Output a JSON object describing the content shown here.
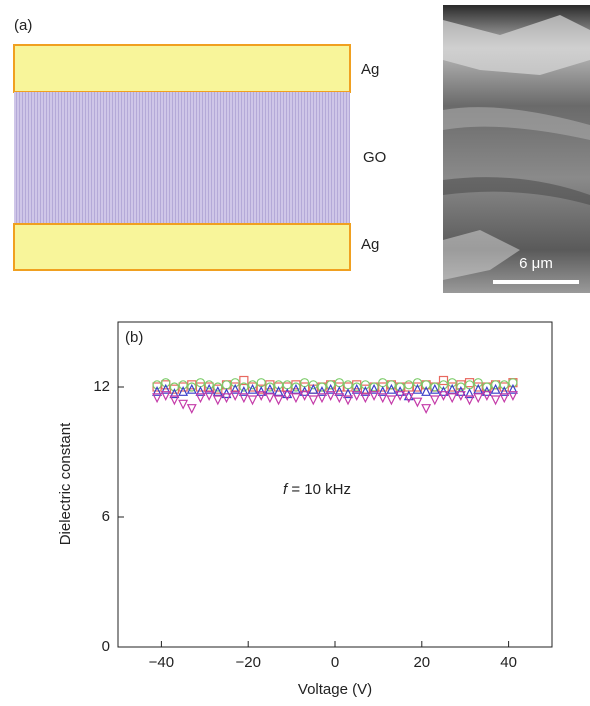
{
  "diagram": {
    "label": "(a)",
    "layers": [
      "Ag",
      "GO",
      "Ag"
    ],
    "scale_bar": "6 μm"
  },
  "chart_data": {
    "type": "scatter",
    "label": "(b)",
    "annotation": {
      "variable": "f",
      "text": "= 10 kHz"
    },
    "x_label": "Voltage (V)",
    "y_label": "Dielectric constant",
    "xlim": [
      -50,
      50
    ],
    "ylim": [
      0,
      15
    ],
    "xticks": [
      {
        "value": -40,
        "label": "−40"
      },
      {
        "value": -20,
        "label": "−20"
      },
      0,
      20,
      40
    ],
    "yticks": [
      0,
      6,
      12
    ],
    "x": [
      -41,
      -39,
      -37,
      -35,
      -33,
      -31,
      -29,
      -27,
      -25,
      -23,
      -21,
      -19,
      -17,
      -15,
      -13,
      -11,
      -9,
      -7,
      -5,
      -3,
      -1,
      1,
      3,
      5,
      7,
      9,
      11,
      13,
      15,
      17,
      19,
      21,
      23,
      25,
      27,
      29,
      31,
      33,
      35,
      37,
      39,
      41
    ],
    "series": [
      {
        "color": "#e8685f",
        "marker": "square",
        "values": [
          12.0,
          12.1,
          11.9,
          12.0,
          12.1,
          12.0,
          12.0,
          11.9,
          12.1,
          12.0,
          12.3,
          12.0,
          11.9,
          12.1,
          12.0,
          12.0,
          12.1,
          12.0,
          11.9,
          12.0,
          12.1,
          12.0,
          12.0,
          12.1,
          11.9,
          12.0,
          12.0,
          12.1,
          12.0,
          12.0,
          12.0,
          12.1,
          12.0,
          12.3,
          12.0,
          12.1,
          12.2,
          12.0,
          12.0,
          12.1,
          12.0,
          12.2
        ]
      },
      {
        "color": "#7dcc6a",
        "marker": "circle",
        "values": [
          12.1,
          12.2,
          12.0,
          12.1,
          12.0,
          12.2,
          12.1,
          12.0,
          12.1,
          12.2,
          12.0,
          12.1,
          12.2,
          12.0,
          12.1,
          12.1,
          12.0,
          12.2,
          12.1,
          12.0,
          12.1,
          12.2,
          12.1,
          12.0,
          12.1,
          12.0,
          12.2,
          12.1,
          12.0,
          12.1,
          12.2,
          12.1,
          12.0,
          12.1,
          12.2,
          12.0,
          12.1,
          12.2,
          12.0,
          12.1,
          12.1,
          12.2
        ]
      },
      {
        "color": "#3a3fc8",
        "marker": "triangle",
        "values": [
          11.8,
          11.9,
          11.7,
          11.8,
          11.9,
          11.8,
          11.9,
          11.8,
          11.7,
          11.9,
          11.8,
          11.9,
          11.8,
          11.9,
          11.8,
          11.7,
          11.9,
          11.8,
          11.9,
          11.8,
          11.9,
          11.8,
          11.7,
          11.9,
          11.8,
          11.9,
          11.8,
          11.9,
          11.8,
          11.6,
          11.9,
          11.8,
          11.9,
          11.8,
          11.9,
          11.8,
          11.7,
          11.9,
          11.8,
          11.9,
          11.8,
          11.9
        ]
      },
      {
        "color": "#c43aa8",
        "marker": "triangle-down",
        "values": [
          11.5,
          11.6,
          11.4,
          11.2,
          11.0,
          11.5,
          11.6,
          11.4,
          11.5,
          11.6,
          11.5,
          11.4,
          11.6,
          11.5,
          11.4,
          11.6,
          11.5,
          11.6,
          11.4,
          11.5,
          11.6,
          11.5,
          11.4,
          11.6,
          11.5,
          11.6,
          11.5,
          11.4,
          11.6,
          11.5,
          11.3,
          11.0,
          11.4,
          11.6,
          11.5,
          11.6,
          11.4,
          11.5,
          11.6,
          11.4,
          11.5,
          11.6
        ]
      }
    ]
  }
}
